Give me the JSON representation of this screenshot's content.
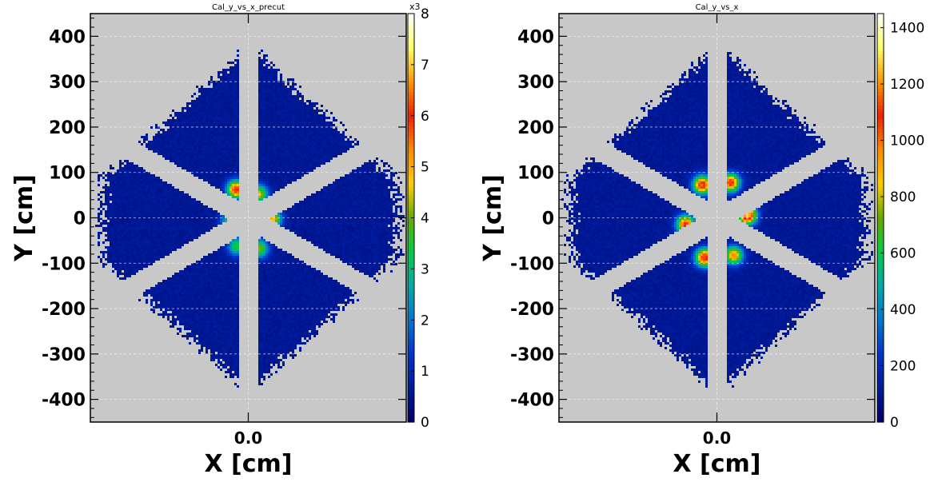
{
  "colors": {
    "plot_background": "#c8c8c8",
    "grid": "#ffffff",
    "colormap": [
      "#000066",
      "#001a99",
      "#0033cc",
      "#0077cc",
      "#00aaaa",
      "#00cc44",
      "#66aa00",
      "#ffcc00",
      "#ff8800",
      "#ee2200",
      "#ff9900",
      "#ffff66",
      "#ffffff"
    ]
  },
  "chart_data": [
    {
      "type": "heatmap",
      "title": "Cal_y_vs_x_precut",
      "xlabel": "X [cm]",
      "ylabel": "Y [cm]",
      "x_tick_labels": [
        "0.0"
      ],
      "xlim": [
        -350,
        350
      ],
      "ylim": [
        -450,
        450
      ],
      "y_ticks": [
        400,
        300,
        200,
        100,
        0,
        -100,
        -200,
        -300,
        -400
      ],
      "grid": true,
      "colorbar": {
        "range": [
          0,
          8
        ],
        "multiplier_label": "x3",
        "tick_labels": [
          "8",
          "7",
          "6",
          "5",
          "4",
          "3",
          "2",
          "1",
          "0"
        ],
        "tick_values": [
          8,
          7,
          6,
          5,
          4,
          3,
          2,
          1,
          0
        ]
      },
      "background_level": 0.6,
      "hotspots": [
        {
          "x": -30,
          "y": 65,
          "value": 5.5
        },
        {
          "x": 20,
          "y": 55,
          "value": 4.0
        },
        {
          "x": -45,
          "y": -5,
          "value": 2.5
        },
        {
          "x": 50,
          "y": 0,
          "value": 4.5
        },
        {
          "x": -28,
          "y": -60,
          "value": 3.0
        },
        {
          "x": 22,
          "y": -65,
          "value": 3.5
        }
      ]
    },
    {
      "type": "heatmap",
      "title": "Cal_y_vs_x",
      "xlabel": "X [cm]",
      "ylabel": "Y [cm]",
      "x_tick_labels": [
        "0.0"
      ],
      "xlim": [
        -350,
        350
      ],
      "ylim": [
        -450,
        450
      ],
      "y_ticks": [
        400,
        300,
        200,
        100,
        0,
        -100,
        -200,
        -300,
        -400
      ],
      "grid": true,
      "colorbar": {
        "range": [
          0,
          1450
        ],
        "multiplier_label": "",
        "tick_labels": [
          "1400",
          "1200",
          "1000",
          "800",
          "600",
          "400",
          "200",
          "0"
        ],
        "tick_values": [
          1400,
          1200,
          1000,
          800,
          600,
          400,
          200,
          0
        ]
      },
      "background_level": 110,
      "hotspots": [
        {
          "x": -35,
          "y": 75,
          "value": 1050
        },
        {
          "x": 28,
          "y": 80,
          "value": 1000
        },
        {
          "x": -72,
          "y": -12,
          "value": 1000
        },
        {
          "x": 65,
          "y": 8,
          "value": 1200
        },
        {
          "x": -30,
          "y": -85,
          "value": 1050
        },
        {
          "x": 35,
          "y": -80,
          "value": 850
        }
      ]
    }
  ]
}
